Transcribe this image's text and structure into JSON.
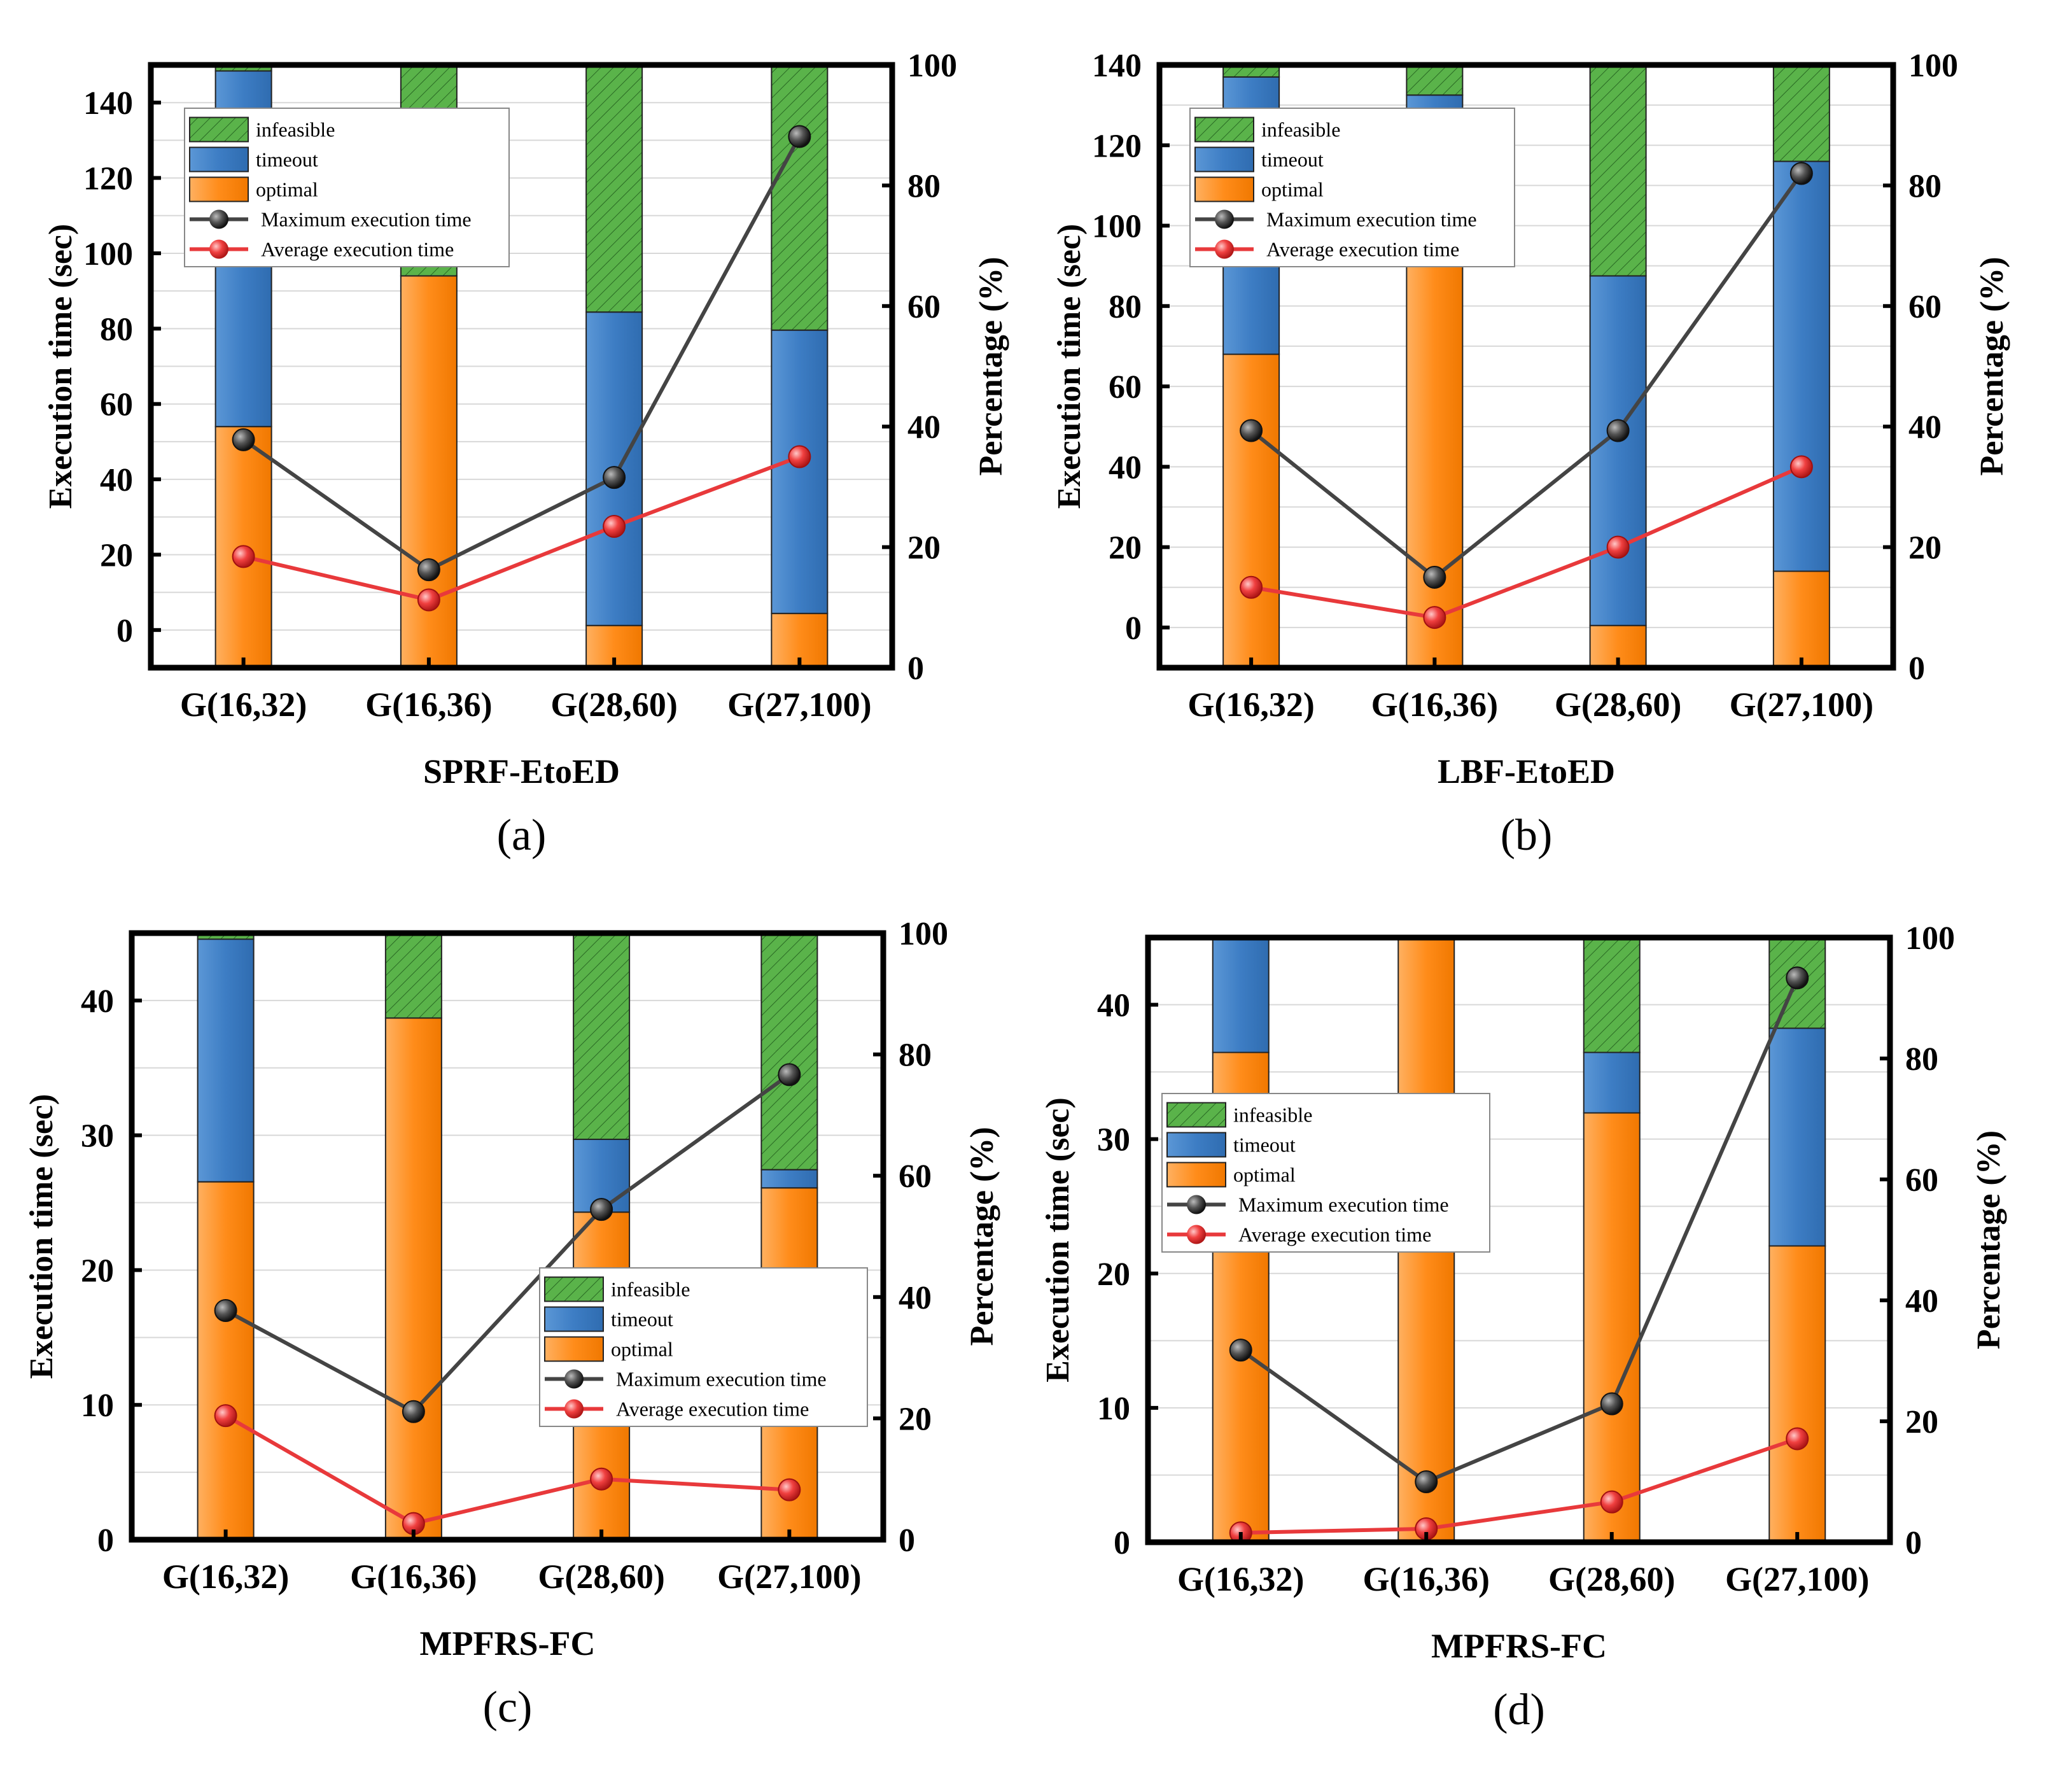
{
  "colors": {
    "optimal": "#ff8c1a",
    "timeout": "#3d7dc4",
    "infeasible": "#5ab34a",
    "max_line": "#444444",
    "avg_line": "#e8393b"
  },
  "legend_labels": {
    "infeasible": "infeasible",
    "timeout": "timeout",
    "optimal": "optimal",
    "max": "Maximum execution time",
    "avg": "Average execution time"
  },
  "chart_data": [
    {
      "type": "bar",
      "subtitle": "SPRF-EtoED",
      "panel_label": "(a)",
      "categories": [
        "G(16,32)",
        "G(16,36)",
        "G(28,60)",
        "G(27,100)"
      ],
      "ylabel": "Execution time (sec)",
      "y2label": "Percentage (%)",
      "ylim": [
        -10,
        150
      ],
      "yticks": [
        "0",
        "20",
        "40",
        "60",
        "80",
        "100",
        "120",
        "140"
      ],
      "y2lim": [
        0,
        100
      ],
      "y2ticks": [
        "0",
        "20",
        "40",
        "60",
        "80",
        "100"
      ],
      "stacked_percent": {
        "optimal": [
          40,
          65,
          7,
          9
        ],
        "timeout": [
          59,
          0,
          52,
          47
        ],
        "infeasible": [
          1,
          35,
          41,
          44
        ]
      },
      "series": [
        {
          "name": "Maximum execution time",
          "values": [
            50.5,
            16,
            40.5,
            131
          ]
        },
        {
          "name": "Average execution time",
          "values": [
            19.5,
            8,
            27.5,
            46
          ]
        }
      ],
      "legend_position": "top-left",
      "grid": true
    },
    {
      "type": "bar",
      "subtitle": "LBF-EtoED",
      "panel_label": "(b)",
      "categories": [
        "G(16,32)",
        "G(16,36)",
        "G(28,60)",
        "G(27,100)"
      ],
      "ylabel": "Execution time (sec)",
      "y2label": "Percentage (%)",
      "ylim": [
        -10,
        140
      ],
      "yticks": [
        "0",
        "20",
        "40",
        "60",
        "80",
        "100",
        "120",
        "140"
      ],
      "y2lim": [
        0,
        100
      ],
      "y2ticks": [
        "0",
        "20",
        "40",
        "60",
        "80",
        "100"
      ],
      "stacked_percent": {
        "optimal": [
          52,
          73,
          7,
          16
        ],
        "timeout": [
          46,
          22,
          58,
          68
        ],
        "infeasible": [
          2,
          5,
          35,
          16
        ]
      },
      "series": [
        {
          "name": "Maximum execution time",
          "values": [
            49,
            12.5,
            49,
            113
          ]
        },
        {
          "name": "Average execution time",
          "values": [
            10,
            2.5,
            20,
            40
          ]
        }
      ],
      "legend_position": "top-left",
      "grid": true
    },
    {
      "type": "bar",
      "subtitle": "MPFRS-FC",
      "panel_label": "(c)",
      "categories": [
        "G(16,32)",
        "G(16,36)",
        "G(28,60)",
        "G(27,100)"
      ],
      "ylabel": "Execution time (sec)",
      "y2label": "Percentage (%)",
      "ylim": [
        0,
        45
      ],
      "yticks": [
        "0",
        "10",
        "20",
        "30",
        "40"
      ],
      "y2lim": [
        0,
        100
      ],
      "y2ticks": [
        "0",
        "20",
        "40",
        "60",
        "80",
        "100"
      ],
      "stacked_percent": {
        "optimal": [
          59,
          86,
          54,
          58
        ],
        "timeout": [
          40,
          0,
          12,
          3
        ],
        "infeasible": [
          1,
          14,
          34,
          39
        ]
      },
      "series": [
        {
          "name": "Maximum execution time",
          "values": [
            17,
            9.5,
            24.5,
            34.5
          ]
        },
        {
          "name": "Average execution time",
          "values": [
            9.2,
            1.2,
            4.5,
            3.7
          ]
        }
      ],
      "legend_position": "center-right",
      "grid": true
    },
    {
      "type": "bar",
      "subtitle": "MPFRS-FC",
      "panel_label": "(d)",
      "categories": [
        "G(16,32)",
        "G(16,36)",
        "G(28,60)",
        "G(27,100)"
      ],
      "ylabel": "Execution time (sec)",
      "y2label": "Percentage (%)",
      "ylim": [
        0,
        45
      ],
      "yticks": [
        "0",
        "10",
        "20",
        "30",
        "40"
      ],
      "y2lim": [
        0,
        100
      ],
      "y2ticks": [
        "0",
        "20",
        "40",
        "60",
        "80",
        "100"
      ],
      "stacked_percent": {
        "optimal": [
          81,
          100,
          71,
          49
        ],
        "timeout": [
          19,
          0,
          10,
          36
        ],
        "infeasible": [
          0,
          0,
          19,
          15
        ]
      },
      "series": [
        {
          "name": "Maximum execution time",
          "values": [
            14.3,
            4.5,
            10.3,
            42
          ]
        },
        {
          "name": "Average execution time",
          "values": [
            0.7,
            1,
            3,
            7.7
          ]
        }
      ],
      "legend_position": "center-left",
      "grid": true
    }
  ]
}
